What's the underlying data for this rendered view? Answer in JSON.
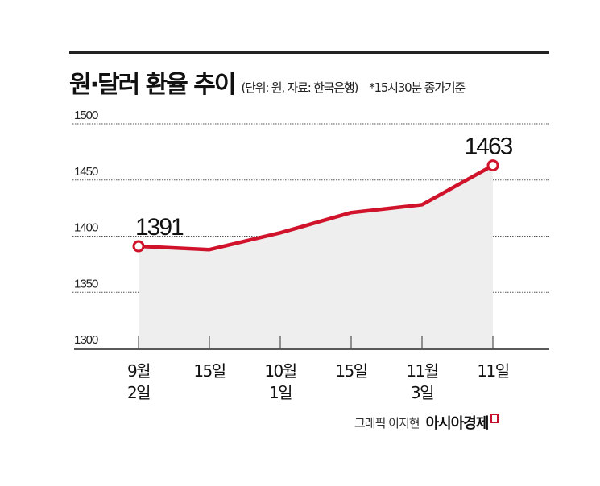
{
  "header": {
    "title": "원·달러 환율 추이",
    "subtitle": "(단위: 원, 자료: 한국은행)",
    "note": "*15시30분 종가기준"
  },
  "footer": {
    "author": "그래픽 이지현",
    "brand": "아시아경제"
  },
  "colors": {
    "line": "#d0122b",
    "area": "#eeeeee",
    "grid": "#555555",
    "axis": "#222222"
  },
  "chart_data": {
    "type": "line",
    "title": "원·달러 환율 추이",
    "subtitle": "(단위: 원, 자료: 한국은행) *15시30분 종가기준",
    "xlabel": "",
    "ylabel": "원",
    "categories": [
      "9월 2일",
      "15일",
      "10월 1일",
      "15일",
      "11월 3일",
      "11일"
    ],
    "category_lines": [
      [
        "9월",
        "2일"
      ],
      [
        "15일"
      ],
      [
        "10월",
        "1일"
      ],
      [
        "15일"
      ],
      [
        "11월",
        "3일"
      ],
      [
        "11일"
      ]
    ],
    "series": [
      {
        "name": "원·달러 환율",
        "values": [
          1391,
          1388,
          1403,
          1421,
          1428,
          1463
        ]
      }
    ],
    "annotations": [
      {
        "index": 0,
        "label": "1391"
      },
      {
        "index": 5,
        "label": "1463"
      }
    ],
    "yticks": [
      1300,
      1350,
      1400,
      1450,
      1500
    ],
    "ylim": [
      1300,
      1500
    ],
    "grid": true,
    "area_fill": true,
    "legend": "none"
  }
}
